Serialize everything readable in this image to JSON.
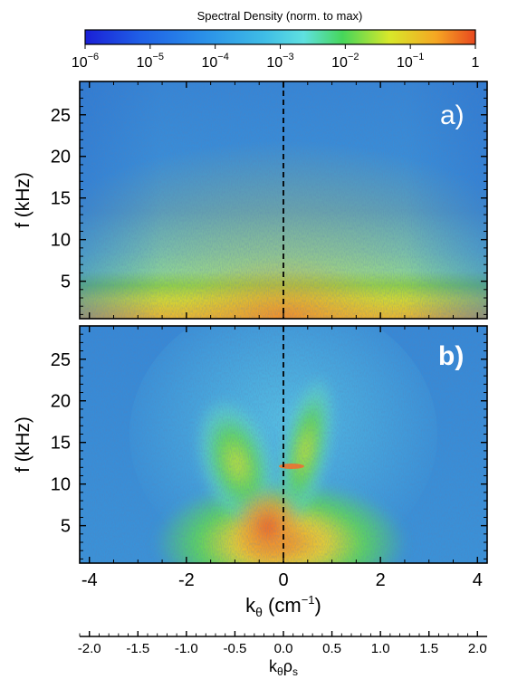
{
  "colors": {
    "colormap": [
      "#1a1fd6",
      "#1f5fe6",
      "#2a8fe8",
      "#3fbde6",
      "#5fe0e0",
      "#46d65a",
      "#d8e82a",
      "#f5a623",
      "#e8481f"
    ],
    "panel_a_low": "#3b93d9",
    "panel_b_low": "#3a8fd6"
  },
  "chart_data": {
    "type": "heatmap",
    "colorbar": {
      "title": "Spectral Density (norm. to max)",
      "scale": "log",
      "range": [
        1e-06,
        1
      ],
      "ticks": [
        {
          "base": "10",
          "exp": "−6"
        },
        {
          "base": "10",
          "exp": "−5"
        },
        {
          "base": "10",
          "exp": "−4"
        },
        {
          "base": "10",
          "exp": "−3"
        },
        {
          "base": "10",
          "exp": "−2"
        },
        {
          "base": "10",
          "exp": "−1"
        },
        {
          "base": "1",
          "exp": ""
        }
      ]
    },
    "xaxis": {
      "label_main": "k",
      "label_sub": "θ",
      "label_rest": " (cm",
      "label_sup": "−1",
      "label_end": ")",
      "range": [
        -4.2,
        4.2
      ],
      "ticks": [
        -4,
        -2,
        0,
        2,
        4
      ],
      "tick_labels": [
        "-4",
        "-2",
        "0",
        "2",
        "4"
      ]
    },
    "xaxis2": {
      "label_main": "k",
      "label_sub": "θ",
      "label_rho": "ρ",
      "label_rho_sub": "s",
      "range": [
        -2.1,
        2.1
      ],
      "ticks": [
        -2.0,
        -1.5,
        -1.0,
        -0.5,
        0.0,
        0.5,
        1.0,
        1.5,
        2.0
      ],
      "tick_labels": [
        "-2.0",
        "-1.5",
        "-1.0",
        "-0.5",
        "0.0",
        "0.5",
        "1.0",
        "1.5",
        "2.0"
      ]
    },
    "yaxis": {
      "label": "f (kHz)",
      "range": [
        0.5,
        29
      ],
      "ticks": [
        5,
        10,
        15,
        20,
        25
      ],
      "tick_labels": [
        "5",
        "10",
        "15",
        "20",
        "25"
      ]
    },
    "panels": [
      {
        "label": "a)",
        "description_peak_kHz": [
          0,
          5
        ]
      },
      {
        "label": "b)"
      }
    ],
    "zero_line_x": 0
  }
}
